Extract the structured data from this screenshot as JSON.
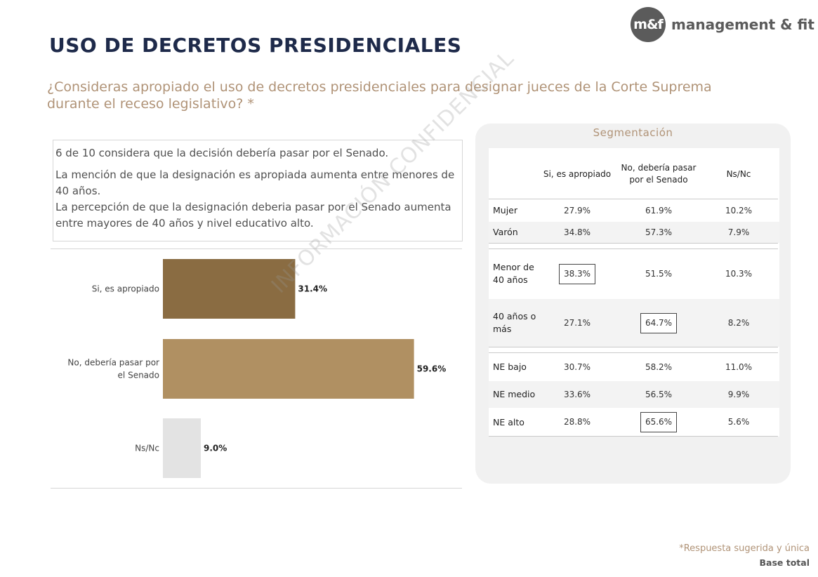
{
  "logo": {
    "mark": "m&f",
    "name": "management & fit"
  },
  "title": "USO DE DECRETOS PRESIDENCIALES",
  "question": "¿Consideras apropiado el uso de decretos presidenciales para designar jueces de la Corte Suprema durante el receso legislativo? *",
  "insights": [
    "6 de 10 considera que la decisión debería pasar por el Senado.",
    "La mención de que la designación es apropiada aumenta entre menores de 40 años.",
    "La percepción de que la designación deberia pasar por el Senado aumenta entre mayores de 40 años y nivel educativo alto."
  ],
  "chart_data": {
    "type": "bar",
    "orientation": "horizontal",
    "categories": [
      "Si, es apropiado",
      "No, debería pasar por el Senado",
      "Ns/Nc"
    ],
    "values": [
      31.4,
      59.6,
      9.0
    ],
    "labels": [
      "31.4%",
      "59.6%",
      "9.0%"
    ],
    "colors": [
      "#8a6c42",
      "#b09062",
      "#e3e3e3"
    ],
    "xlim": [
      0,
      100
    ],
    "unit": "%"
  },
  "segmentation": {
    "title": "Segmentación",
    "columns": [
      "Si, es apropiado",
      "No, debería pasar por el Senado",
      "Ns/Nc"
    ],
    "rows": [
      {
        "label": "Mujer",
        "values": [
          "27.9%",
          "61.9%",
          "10.2%"
        ],
        "highlight": -1
      },
      {
        "label": "Varón",
        "values": [
          "34.8%",
          "57.3%",
          "7.9%"
        ],
        "highlight": -1
      },
      {
        "label": "Menor de 40 años",
        "values": [
          "38.3%",
          "51.5%",
          "10.3%"
        ],
        "highlight": 0
      },
      {
        "label": "40 años o más",
        "values": [
          "27.1%",
          "64.7%",
          "8.2%"
        ],
        "highlight": 1
      },
      {
        "label": "NE bajo",
        "values": [
          "30.7%",
          "58.2%",
          "11.0%"
        ],
        "highlight": -1
      },
      {
        "label": "NE medio",
        "values": [
          "33.6%",
          "56.5%",
          "9.9%"
        ],
        "highlight": -1
      },
      {
        "label": "NE alto",
        "values": [
          "28.8%",
          "65.6%",
          "5.6%"
        ],
        "highlight": 1
      }
    ]
  },
  "watermark": "INFORMACIÓN CONFIDENCIAL",
  "footnote": "*Respuesta sugerida y única",
  "base": "Base total"
}
